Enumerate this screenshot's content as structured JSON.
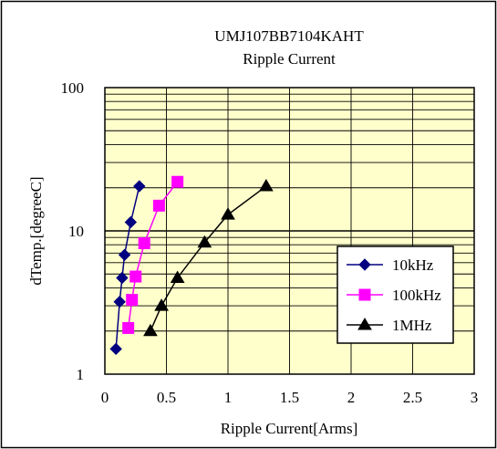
{
  "chart_data": {
    "type": "line",
    "title": "UMJ107BB7104KAHT",
    "subtitle": "Ripple Current",
    "xlabel": "Ripple Current[Arms]",
    "ylabel": "dTemp.[degreeC]",
    "xlim": [
      0,
      3
    ],
    "ylim": [
      1,
      100
    ],
    "yscale": "log",
    "grid": true,
    "legend_position": "right",
    "plot_background": "#ffffcc",
    "x_ticks": [
      "0",
      "0.5",
      "1",
      "1.5",
      "2",
      "2.5",
      "3"
    ],
    "y_ticks": [
      "1",
      "10",
      "100"
    ],
    "series": [
      {
        "name": "10kHz",
        "color": "#000080",
        "marker": "diamond",
        "x": [
          0.09,
          0.12,
          0.14,
          0.16,
          0.21,
          0.28
        ],
        "y": [
          1.5,
          3.2,
          4.7,
          6.8,
          11.5,
          20.5
        ]
      },
      {
        "name": "100kHz",
        "color": "#ff00ff",
        "marker": "square",
        "x": [
          0.19,
          0.22,
          0.25,
          0.32,
          0.44,
          0.59
        ],
        "y": [
          2.1,
          3.3,
          4.8,
          8.2,
          15,
          22
        ]
      },
      {
        "name": "1MHz",
        "color": "#000000",
        "marker": "triangle",
        "x": [
          0.37,
          0.46,
          0.59,
          0.81,
          1.0,
          1.31
        ],
        "y": [
          2.0,
          3.0,
          4.7,
          8.3,
          13,
          20.5
        ]
      }
    ]
  }
}
